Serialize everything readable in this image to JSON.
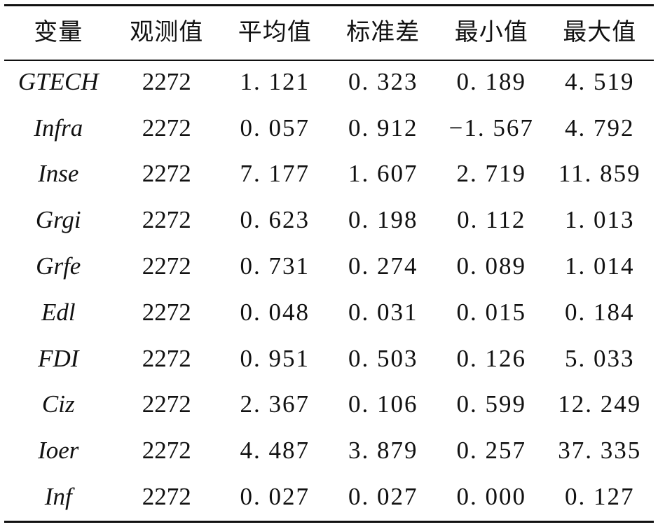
{
  "table": {
    "headers": [
      "变量",
      "观测值",
      "平均值",
      "标准差",
      "最小值",
      "最大值"
    ],
    "rows": [
      [
        "GTECH",
        "2272",
        "1. 121",
        "0. 323",
        "0. 189",
        "4. 519"
      ],
      [
        "Infra",
        "2272",
        "0. 057",
        "0. 912",
        "−1. 567",
        "4. 792"
      ],
      [
        "Inse",
        "2272",
        "7. 177",
        "1. 607",
        "2. 719",
        "11. 859"
      ],
      [
        "Grgi",
        "2272",
        "0. 623",
        "0. 198",
        "0. 112",
        "1. 013"
      ],
      [
        "Grfe",
        "2272",
        "0. 731",
        "0. 274",
        "0. 089",
        "1. 014"
      ],
      [
        "Edl",
        "2272",
        "0. 048",
        "0. 031",
        "0. 015",
        "0. 184"
      ],
      [
        "FDI",
        "2272",
        "0. 951",
        "0. 503",
        "0. 126",
        "5. 033"
      ],
      [
        "Ciz",
        "2272",
        "2. 367",
        "0. 106",
        "0. 599",
        "12. 249"
      ],
      [
        "Ioer",
        "2272",
        "4. 487",
        "3. 879",
        "0. 257",
        "37. 335"
      ],
      [
        "Inf",
        "2272",
        "0. 027",
        "0. 027",
        "0. 000",
        "0. 127"
      ]
    ]
  }
}
